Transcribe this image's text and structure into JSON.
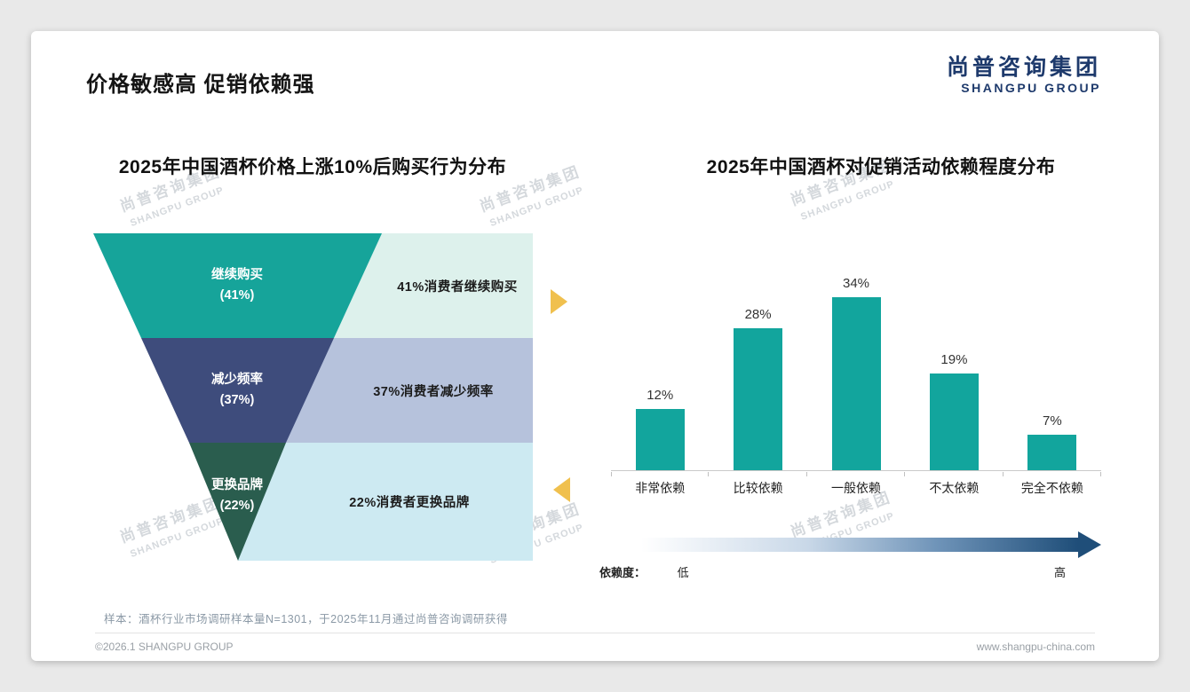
{
  "page": {
    "title": "价格敏感高 促销依赖强",
    "logo": {
      "cn": "尚普咨询集团",
      "en": "SHANGPU GROUP"
    },
    "watermark": {
      "line1": "尚普咨询集团",
      "line2": "SHANGPU GROUP"
    },
    "footnote": "样本：酒杯行业市场调研样本量N=1301，于2025年11月通过尚普咨询调研获得",
    "footer": {
      "copyright": "©2026.1 SHANGPU GROUP",
      "website": "www.shangpu-china.com"
    },
    "brand_navy": "#1e3a6c",
    "accent_gold": "#f0c04e"
  },
  "chart_data": [
    {
      "type": "funnel",
      "title": "2025年中国酒杯价格上涨10%后购买行为分布",
      "stages": [
        {
          "label": "继续购买",
          "value": 41,
          "value_label": "(41%)",
          "annotation": "41%消费者继续购买",
          "color": "#16a49a",
          "annotation_bg": "#ddf1ec"
        },
        {
          "label": "减少频率",
          "value": 37,
          "value_label": "(37%)",
          "annotation": "37%消费者减少频率",
          "color": "#3e4c7c",
          "annotation_bg": "#b6c2dc"
        },
        {
          "label": "更换品牌",
          "value": 22,
          "value_label": "(22%)",
          "annotation": "22%消费者更换品牌",
          "color": "#2a5d4e",
          "annotation_bg": "#cdeaf2"
        }
      ]
    },
    {
      "type": "bar",
      "title": "2025年中国酒杯对促销活动依赖程度分布",
      "categories": [
        "非常依赖",
        "比较依赖",
        "一般依赖",
        "不太依赖",
        "完全不依赖"
      ],
      "values": [
        12,
        28,
        34,
        19,
        7
      ],
      "value_labels": [
        "12%",
        "28%",
        "34%",
        "19%",
        "7%"
      ],
      "bar_color": "#12a59d",
      "ylim": [
        0,
        40
      ],
      "grid": false,
      "legend_position": "none",
      "dependency_axis": {
        "label": "依赖度：",
        "low": "低",
        "high": "高",
        "gradient_end": "#1f4e79"
      }
    }
  ]
}
